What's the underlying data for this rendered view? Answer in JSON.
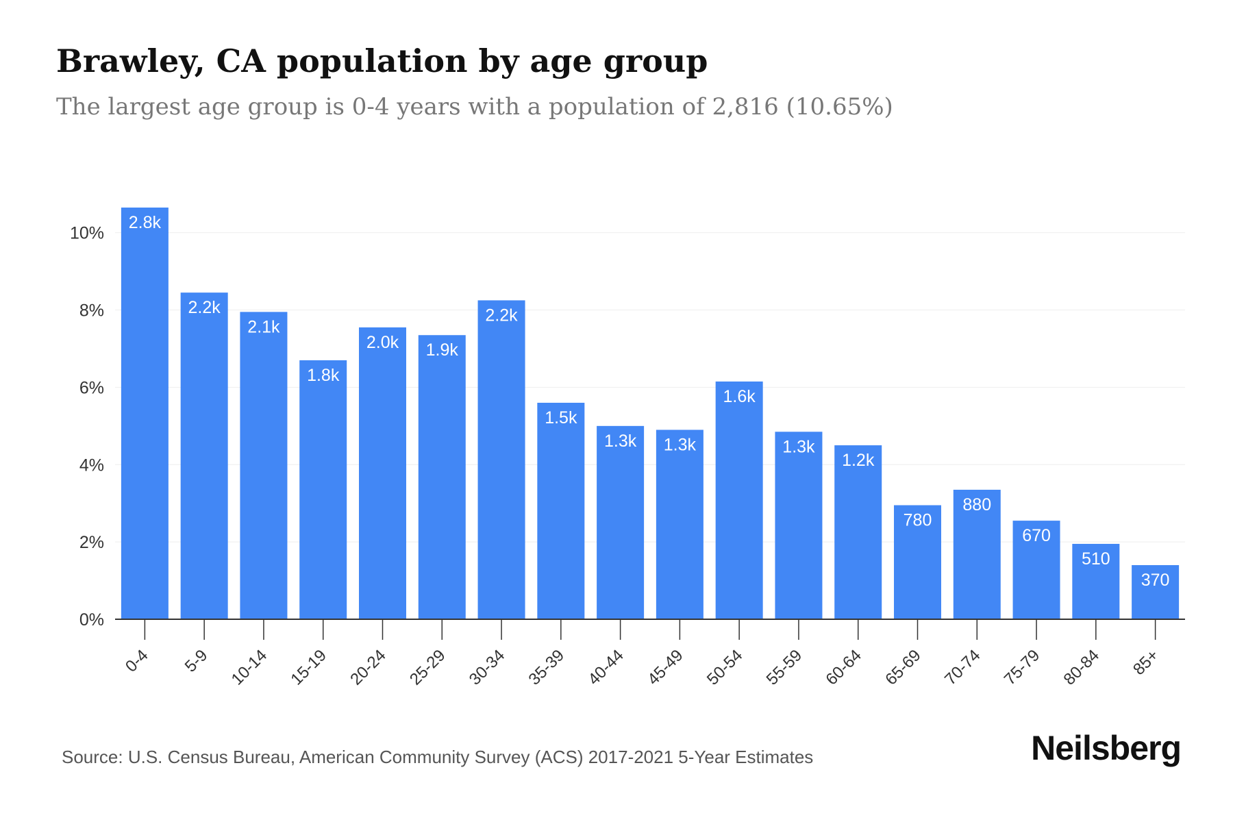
{
  "title": "Brawley, CA population by age group",
  "subtitle": "The largest age group is 0-4 years with a population of 2,816 (10.65%)",
  "source": "Source: U.S. Census Bureau, American Community Survey (ACS) 2017-2021 5-Year Estimates",
  "brand": "Neilsberg",
  "colors": {
    "bar": "#4287f5",
    "bar_label": "#ffffff",
    "axis": "#333333",
    "grid": "#eeeeee",
    "tick_label": "#333333"
  },
  "chart_data": {
    "type": "bar",
    "categories": [
      "0-4",
      "5-9",
      "10-14",
      "15-19",
      "20-24",
      "25-29",
      "30-34",
      "35-39",
      "40-44",
      "45-49",
      "50-54",
      "55-59",
      "60-64",
      "65-69",
      "70-74",
      "75-79",
      "80-84",
      "85+"
    ],
    "values": [
      10.65,
      8.45,
      7.95,
      6.7,
      7.55,
      7.35,
      8.25,
      5.6,
      5.0,
      4.9,
      6.15,
      4.85,
      4.5,
      2.95,
      3.35,
      2.55,
      1.95,
      1.4
    ],
    "data_labels": [
      "2.8k",
      "2.2k",
      "2.1k",
      "1.8k",
      "2.0k",
      "1.9k",
      "2.2k",
      "1.5k",
      "1.3k",
      "1.3k",
      "1.6k",
      "1.3k",
      "1.2k",
      "780",
      "880",
      "670",
      "510",
      "370"
    ],
    "y_ticks": [
      "0%",
      "2%",
      "4%",
      "6%",
      "8%",
      "10%"
    ],
    "y_tick_values": [
      0,
      2,
      4,
      6,
      8,
      10
    ],
    "ylim": [
      0,
      10.65
    ],
    "grid": true,
    "legend": false
  }
}
